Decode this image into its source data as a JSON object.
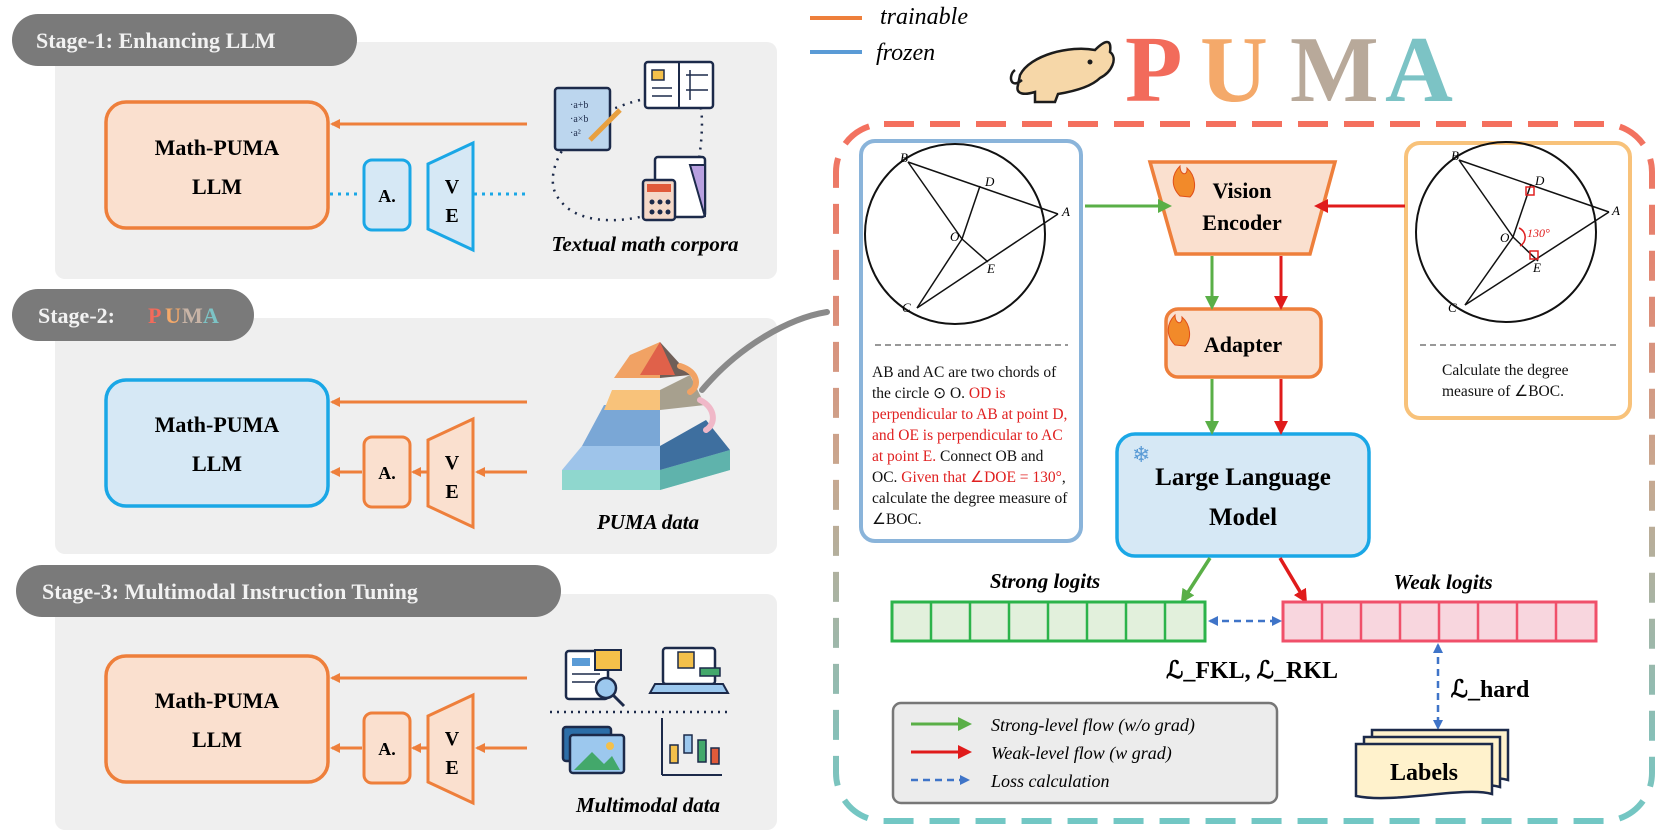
{
  "legend_top": {
    "trainable_label": "trainable",
    "frozen_label": "frozen"
  },
  "title": {
    "letters": [
      "P",
      "U",
      "M",
      "A"
    ],
    "letter_colors": [
      "#f26b5b",
      "#f4a96a",
      "#b8a99a",
      "#7cc3c5"
    ]
  },
  "stages": [
    {
      "tab_label": "Stage-1: Enhancing LLM",
      "llm_label_line1": "Math-PUMA",
      "llm_label_line2": "LLM",
      "adapter_label": "A.",
      "ve_label_line1": "V",
      "ve_label_line2": "E",
      "data_label": "Textual math corpora"
    },
    {
      "tab_label_prefix": "Stage-2: ",
      "tab_label_puma": [
        "P",
        "U",
        "M",
        "A"
      ],
      "llm_label_line1": "Math-PUMA",
      "llm_label_line2": "LLM",
      "adapter_label": "A.",
      "ve_label_line1": "V",
      "ve_label_line2": "E",
      "data_label": "PUMA data"
    },
    {
      "tab_label": "Stage-3: Multimodal Instruction Tuning",
      "llm_label_line1": "Math-PUMA",
      "llm_label_line2": "LLM",
      "adapter_label": "A.",
      "ve_label_line1": "V",
      "ve_label_line2": "E",
      "data_label": "Multimodal data"
    }
  ],
  "pipeline": {
    "vision_encoder_line1": "Vision",
    "vision_encoder_line2": "Encoder",
    "adapter": "Adapter",
    "llm_line1": "Large Language",
    "llm_line2": "Model",
    "strong_logits": "Strong logits",
    "weak_logits": "Weak logits",
    "loss_fkl_rkl": "ℒ_FKL, ℒ_RKL",
    "loss_hard": "ℒ_hard",
    "labels": "Labels",
    "logit_cells": 8
  },
  "left_figure": {
    "points": [
      "B",
      "D",
      "A",
      "O",
      "E",
      "C"
    ],
    "question_parts": [
      {
        "text": "AB and AC are two chords of the circle ⊙ O. ",
        "color": "#111"
      },
      {
        "text": "OD is perpendicular to AB at point D, and OE is perpendicular to AC at point E.",
        "color": "#e02020"
      },
      {
        "text": " Connect OB and OC. ",
        "color": "#111"
      },
      {
        "text": "Given that ∠DOE = 130°",
        "color": "#e02020"
      },
      {
        "text": ", calculate the degree measure of ∠BOC.",
        "color": "#111"
      }
    ]
  },
  "right_figure": {
    "points": [
      "B",
      "D",
      "A",
      "O",
      "E",
      "C"
    ],
    "angle_label": "130°",
    "question": "Calculate the degree measure of ∠BOC."
  },
  "legend_bottom": {
    "strong_flow": "Strong-level flow (w/o grad)",
    "weak_flow": "Weak-level flow (w grad)",
    "loss_calc": "Loss calculation"
  },
  "colors": {
    "orange": "#ee7f3b",
    "blue": "#1aa7e6",
    "green": "#5aaf47",
    "red": "#e01b1b",
    "dashed_blue": "#3f74c8",
    "stage_tab": "#7a7a7a",
    "stage_panel": "#efefef"
  }
}
